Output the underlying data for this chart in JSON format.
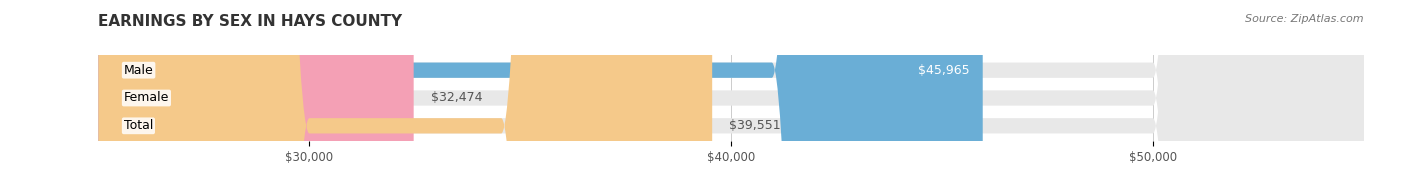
{
  "title": "EARNINGS BY SEX IN HAYS COUNTY",
  "source": "Source: ZipAtlas.com",
  "categories": [
    "Male",
    "Female",
    "Total"
  ],
  "values": [
    45965,
    32474,
    39551
  ],
  "bar_colors": [
    "#6aaed6",
    "#f4a0b5",
    "#f5c98a"
  ],
  "label_colors": [
    "white",
    "black",
    "black"
  ],
  "bg_color": "#ffffff",
  "bar_bg_color": "#e8e8e8",
  "xmin": 25000,
  "xmax": 55000,
  "xticks": [
    30000,
    40000,
    50000
  ],
  "xtick_labels": [
    "$30,000",
    "$40,000",
    "$50,000"
  ],
  "title_fontsize": 11,
  "bar_height": 0.55,
  "label_fontsize": 9,
  "category_fontsize": 9,
  "value_labels": [
    "$45,965",
    "$32,474",
    "$39,551"
  ]
}
